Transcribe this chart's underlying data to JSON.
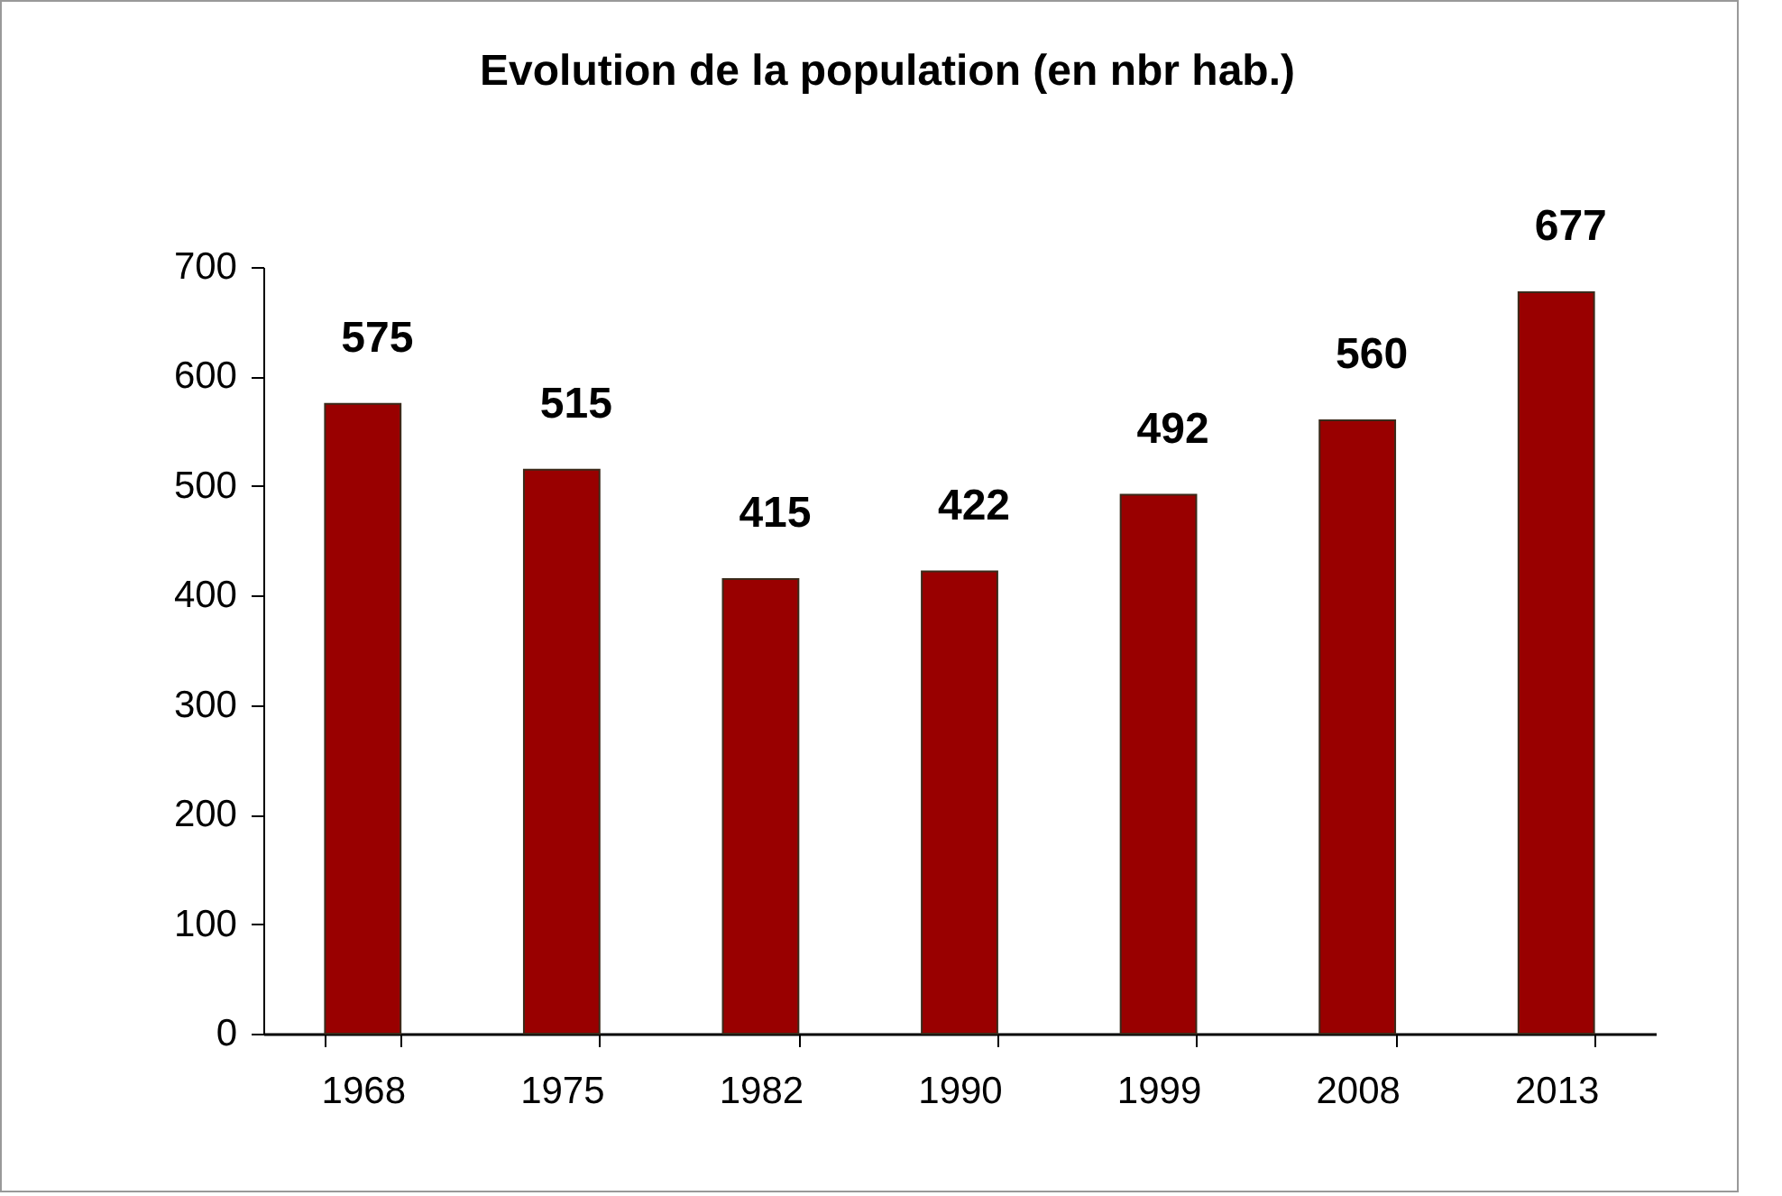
{
  "chart_data": {
    "type": "bar",
    "title": "Evolution de la population (en nbr hab.)",
    "categories": [
      "1968",
      "1975",
      "1982",
      "1990",
      "1999",
      "2008",
      "2013"
    ],
    "values": [
      575,
      515,
      415,
      422,
      492,
      560,
      677
    ],
    "color": "#990000",
    "ylim": [
      0,
      700
    ],
    "yticks": [
      0,
      100,
      200,
      300,
      400,
      500,
      600,
      700
    ],
    "grid": false,
    "data_labels": true
  }
}
